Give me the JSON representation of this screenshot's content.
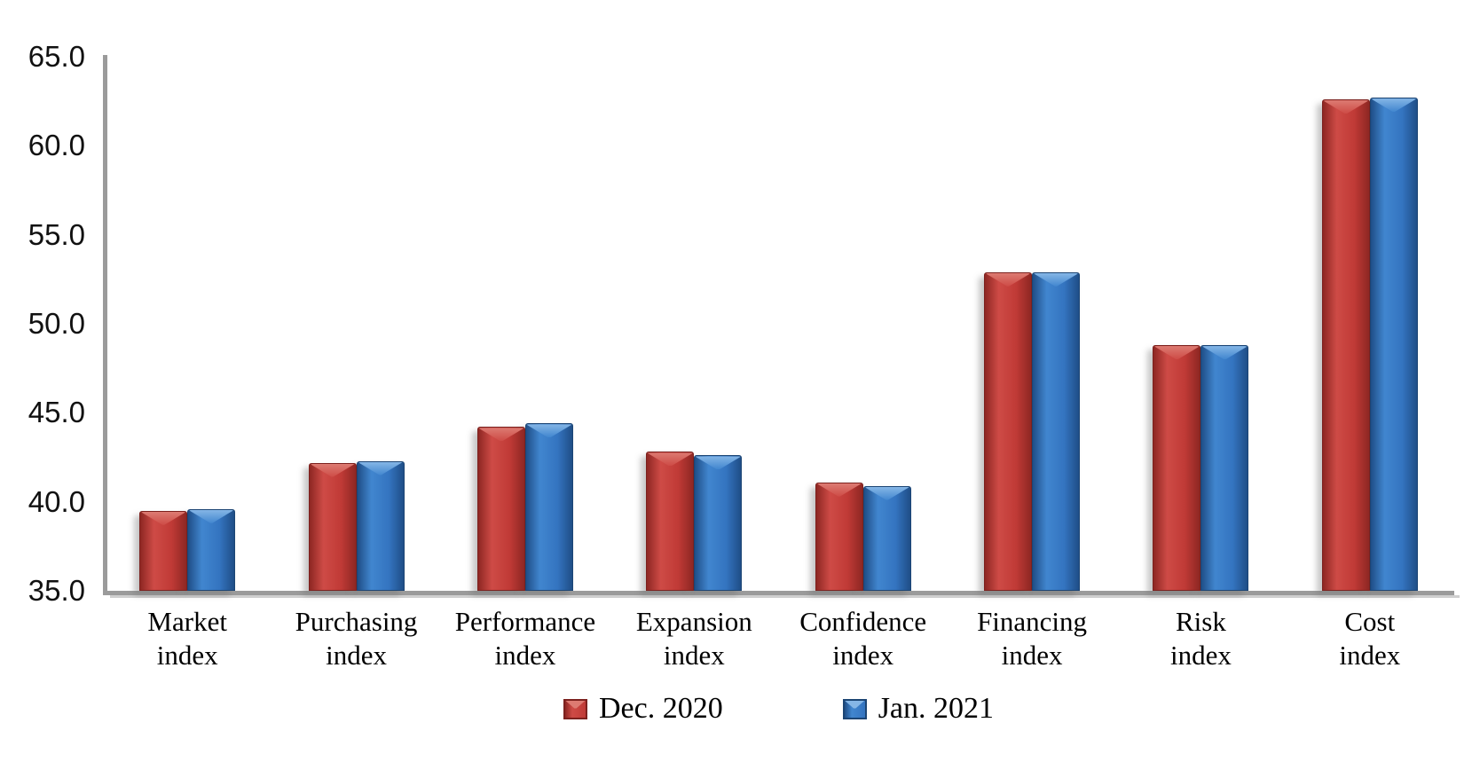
{
  "chart_data": {
    "type": "bar",
    "title": "",
    "xlabel": "",
    "ylabel": "",
    "ylim": [
      35,
      65
    ],
    "yticks": [
      "35.0",
      "40.0",
      "45.0",
      "50.0",
      "55.0",
      "60.0",
      "65.0"
    ],
    "grid": false,
    "legend_position": "bottom",
    "categories": [
      [
        "Market",
        "index"
      ],
      [
        "Purchasing",
        "index"
      ],
      [
        "Performance",
        "index"
      ],
      [
        "Expansion",
        "index"
      ],
      [
        "Confidence",
        "index"
      ],
      [
        "Financing",
        "index"
      ],
      [
        "Risk",
        "index"
      ],
      [
        "Cost",
        "index"
      ]
    ],
    "series": [
      {
        "name": "Dec. 2020",
        "values": [
          39.5,
          42.2,
          44.2,
          42.8,
          41.1,
          52.9,
          48.8,
          62.6
        ],
        "colors": {
          "mid": "#c03a36",
          "light": "#ce4b46",
          "edge": "#8e2723",
          "border": "#7c211e",
          "highlight": "#dd7b72"
        }
      },
      {
        "name": "Jan. 2021",
        "values": [
          39.6,
          42.3,
          44.4,
          42.6,
          40.9,
          52.9,
          48.8,
          62.7
        ],
        "colors": {
          "mid": "#3474c0",
          "light": "#4186cf",
          "edge": "#1f4e87",
          "border": "#1c4574",
          "highlight": "#85b6e6"
        }
      }
    ],
    "axis_color": "#9b9b9b",
    "text_color": "#000000"
  }
}
